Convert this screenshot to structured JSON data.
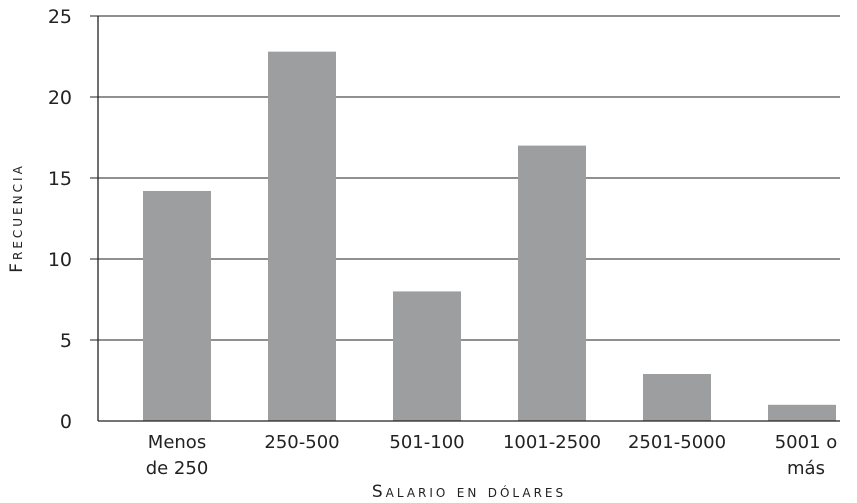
{
  "chart_data": {
    "type": "bar",
    "categories": [
      "Menos de 250",
      "250-500",
      "501-100",
      "1001-2500",
      "2501-5000",
      "5001 o más"
    ],
    "category_lines": [
      [
        "Menos",
        "de 250"
      ],
      [
        "250-500"
      ],
      [
        "501-100"
      ],
      [
        "1001-2500"
      ],
      [
        "2501-5000"
      ],
      [
        "5001 o",
        "más"
      ]
    ],
    "values": [
      14.2,
      22.8,
      8,
      17,
      2.9,
      1
    ],
    "xlabel": "Salario en dólares",
    "ylabel": "Frecuencia",
    "ylim": [
      0,
      25
    ],
    "yticks": [
      0,
      5,
      10,
      15,
      20,
      25
    ],
    "ytick_labels": [
      "0",
      "5",
      "10",
      "15",
      "20",
      "25"
    ],
    "grid": true,
    "bar_color": "#9d9e9f"
  }
}
